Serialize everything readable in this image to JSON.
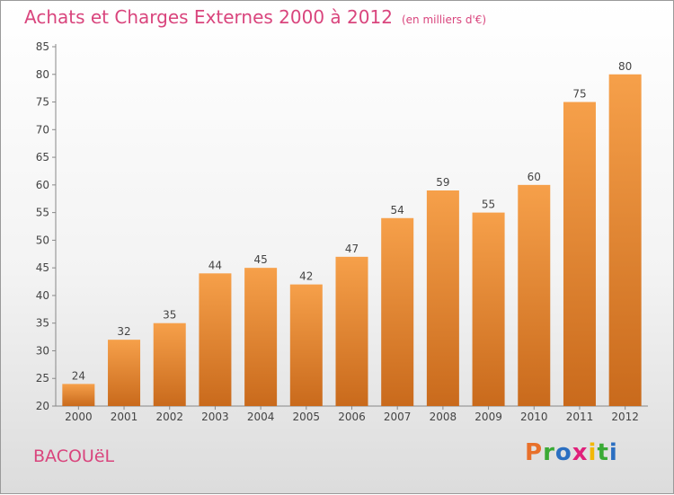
{
  "header": {
    "title": "Achats et Charges Externes 2000 à 2012",
    "unit": "(en milliers d'€)"
  },
  "footer": {
    "commune": "BACOUëL",
    "brand_letters": [
      "P",
      "r",
      "o",
      "x",
      "i",
      "t",
      "i"
    ],
    "brand_colors": [
      "#e8702a",
      "#3aaa35",
      "#2b6fc1",
      "#e0207a",
      "#f2b705",
      "#3aaa35",
      "#2b6fc1"
    ]
  },
  "chart_data": {
    "type": "bar",
    "title": "Achats et Charges Externes 2000 à 2012",
    "subtitle": "(en milliers d'€)",
    "categories": [
      "2000",
      "2001",
      "2002",
      "2003",
      "2004",
      "2005",
      "2006",
      "2007",
      "2008",
      "2009",
      "2010",
      "2011",
      "2012"
    ],
    "values": [
      24,
      32,
      35,
      44,
      45,
      42,
      47,
      54,
      59,
      55,
      60,
      75,
      80
    ],
    "ylim": [
      20,
      85
    ],
    "yticks": [
      20,
      25,
      30,
      35,
      40,
      45,
      50,
      55,
      60,
      65,
      70,
      75,
      80,
      85
    ],
    "grid": false,
    "legend": "none",
    "bar_color": "#f08c32",
    "bar_color_dark": "#c8641a"
  }
}
